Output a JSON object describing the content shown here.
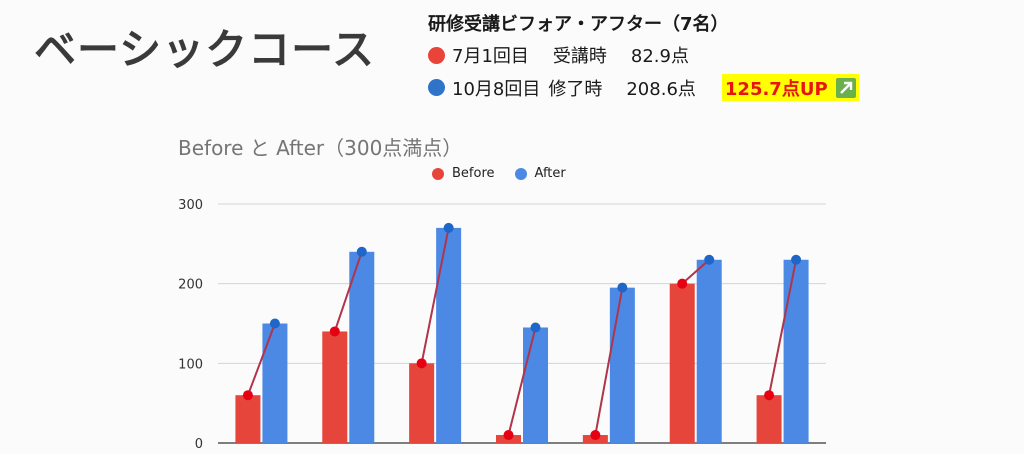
{
  "course_title": "ベーシックコース",
  "summary": {
    "title": "研修受講ビフォア・アフター（7名）",
    "before": {
      "label": "7月1回目",
      "stage": "受講時",
      "score": "82.9点",
      "color": "#e8443a"
    },
    "after": {
      "label": "10月8回目",
      "stage": "修了時",
      "score": "208.6点",
      "color": "#2f74c9"
    },
    "improvement": "125.7点UP",
    "improvement_icon": "up-right-arrow-icon"
  },
  "chart_data": {
    "type": "bar",
    "title": "Before と After（300点満点）",
    "xlabel": "",
    "ylabel": "",
    "categories": [
      "",
      "",
      "",
      "",
      "",
      "",
      ""
    ],
    "series": [
      {
        "name": "Before",
        "color": "#e5453b",
        "values": [
          60,
          140,
          100,
          10,
          10,
          200,
          60
        ]
      },
      {
        "name": "After",
        "color": "#4c89e4",
        "values": [
          150,
          240,
          270,
          145,
          195,
          230,
          230
        ]
      }
    ],
    "connector_line_color": "#b0344a",
    "marker_color": "#e60012",
    "after_marker_color": "#1f66c8",
    "ylim": [
      0,
      300
    ],
    "yticks": [
      "0",
      "100",
      "200",
      "300"
    ],
    "grid": true,
    "legend_position": "top"
  }
}
